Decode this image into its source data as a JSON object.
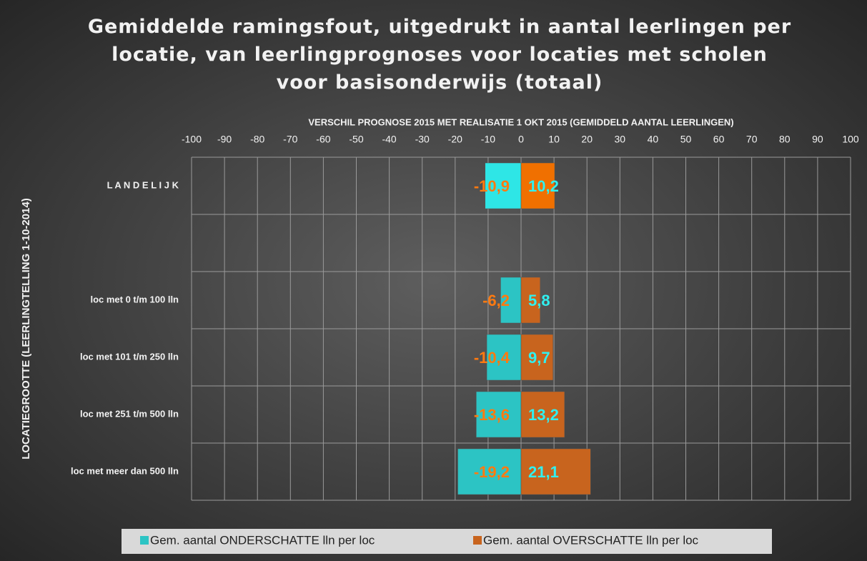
{
  "chart_data": {
    "type": "diverging-bar",
    "title": "Gemiddelde ramingsfout, uitgedrukt in aantal leerlingen per locatie, van leerlingprognoses voor locaties met scholen voor basisonderwijs (totaal)",
    "x_label": "VERSCHIL PROGNOSE 2015 MET REALISATIE 1 OKT 2015 (GEMIDDELD AANTAL LEERLINGEN)",
    "y_label": "LOCATIEGROOTTE (LEERLINGTELLING 1-10-2014)",
    "categories": [
      "L A N D E L I J K",
      null,
      "loc met 0 t/m 100 lln",
      "loc met 101 t/m 250 lln",
      "loc met 251 t/m 500 lln",
      "loc met meer dan 500 lln"
    ],
    "series": [
      {
        "name": "Gem. aantal ONDERSCHATTE lln per loc",
        "color": "#2cc4c4",
        "colors": [
          "#2ee6e6",
          null,
          "#2cc4c4",
          "#2cc4c4",
          "#2cc4c4",
          "#2cc4c4"
        ],
        "values": [
          -10.9,
          null,
          -6.2,
          -10.4,
          -13.6,
          -19.2
        ],
        "value_labels": [
          "-10,9",
          null,
          "-6,2",
          "-10,4",
          "-13,6",
          "-19,2"
        ]
      },
      {
        "name": "Gem. aantal OVERSCHATTE lln per loc",
        "color": "#c8641e",
        "colors": [
          "#f07000",
          null,
          "#c8641e",
          "#c8641e",
          "#c8641e",
          "#c8641e"
        ],
        "values": [
          10.2,
          null,
          5.8,
          9.7,
          13.2,
          21.1
        ],
        "value_labels": [
          "10,2",
          null,
          "5,8",
          "9,7",
          "13,2",
          "21,1"
        ]
      }
    ],
    "xlim": [
      -100,
      100
    ],
    "xticks": [
      -100,
      -90,
      -80,
      -70,
      -60,
      -50,
      -40,
      -30,
      -20,
      -10,
      0,
      10,
      20,
      30,
      40,
      50,
      60,
      70,
      80,
      90,
      100
    ],
    "grid": true,
    "legend": "bottom"
  }
}
